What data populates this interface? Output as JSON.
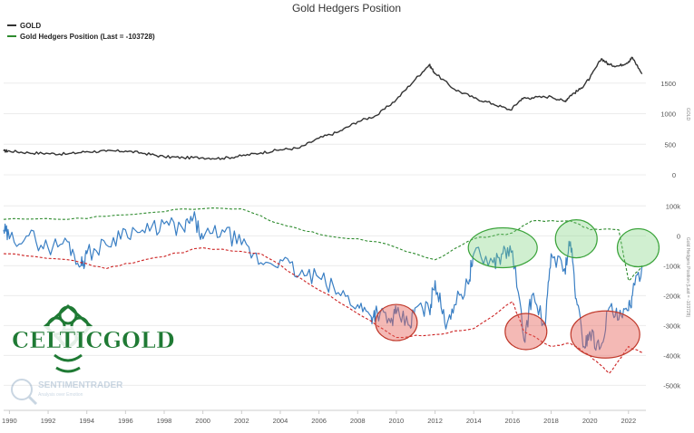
{
  "chart_data": {
    "type": "line",
    "title": "Gold Hedgers Position",
    "legend": {
      "placement": "top-left",
      "items": [
        {
          "label": "GOLD",
          "color": "#333333"
        },
        {
          "label": "Gold Hedgers Position (Last = -103728)",
          "color": "#2e8b2e"
        }
      ]
    },
    "x_ticks": [
      "1990",
      "1992",
      "1994",
      "1996",
      "1998",
      "2000",
      "2002",
      "2004",
      "2006",
      "2008",
      "2010",
      "2012",
      "2014",
      "2016",
      "2018",
      "2020",
      "2022"
    ],
    "xlim": [
      1989.7,
      2022.9
    ],
    "upper_axis": {
      "label": "GOLD",
      "ticks": [
        "0",
        "500",
        "1000",
        "1500"
      ],
      "ylim": [
        0,
        2000
      ],
      "grid": true
    },
    "lower_axis": {
      "label": "Gold Hedgers Position (Last = -103728)",
      "ticks": [
        "100k",
        "0",
        "-100k",
        "-200k",
        "-300k",
        "-400k",
        "-500k"
      ],
      "ylim": [
        -520000,
        110000
      ],
      "grid": true
    },
    "series": [
      {
        "name": "GOLD",
        "axis": "upper",
        "color": "#333333",
        "x": [
          1989.7,
          1990,
          1991,
          1992,
          1993,
          1994,
          1995,
          1996,
          1997,
          1998,
          1999,
          2000,
          2001,
          2002,
          2003,
          2004,
          2005,
          2006,
          2007,
          2008,
          2009,
          2010,
          2011,
          2011.7,
          2012,
          2013,
          2014,
          2015,
          2015.9,
          2016.5,
          2017,
          2018,
          2018.7,
          2019,
          2019.5,
          2020,
          2020.6,
          2021,
          2021.5,
          2022,
          2022.2,
          2022.7
        ],
        "y": [
          390,
          390,
          360,
          350,
          340,
          380,
          385,
          390,
          350,
          295,
          280,
          280,
          270,
          310,
          360,
          410,
          440,
          600,
          700,
          870,
          975,
          1230,
          1570,
          1800,
          1660,
          1400,
          1260,
          1160,
          1060,
          1250,
          1260,
          1280,
          1200,
          1300,
          1400,
          1580,
          1900,
          1800,
          1780,
          1850,
          1920,
          1650
        ]
      },
      {
        "name": "Gold Hedgers Position (Last = -103728)",
        "axis": "lower",
        "color": "#3a7fc4",
        "x": [
          1989.7,
          1990,
          1991,
          1992,
          1993,
          1993.7,
          1994,
          1995,
          1996,
          1997,
          1998,
          1999,
          1999.5,
          2000,
          2001,
          2002,
          2003,
          2004,
          2005,
          2006,
          2007,
          2008,
          2008.7,
          2009,
          2009.7,
          2010,
          2010.7,
          2011,
          2011.7,
          2012,
          2012.5,
          2013,
          2013.7,
          2014,
          2015,
          2015.5,
          2016,
          2016.6,
          2017,
          2017.7,
          2018,
          2018.7,
          2019,
          2019.3,
          2019.7,
          2020,
          2020.5,
          2021,
          2021.5,
          2022,
          2022.2,
          2022.7
        ],
        "y": [
          20000,
          -10000,
          0,
          -40000,
          -20000,
          -100000,
          -60000,
          -30000,
          20000,
          10000,
          40000,
          20000,
          60000,
          -10000,
          20000,
          -30000,
          -90000,
          -80000,
          -130000,
          -140000,
          -190000,
          -230000,
          -270000,
          -250000,
          -290000,
          -260000,
          -300000,
          -240000,
          -250000,
          -150000,
          -290000,
          -230000,
          -160000,
          -60000,
          -90000,
          -60000,
          -50000,
          -350000,
          -200000,
          -300000,
          -60000,
          -110000,
          -20000,
          -210000,
          -370000,
          -320000,
          -380000,
          -240000,
          -280000,
          -250000,
          -200000,
          -100000
        ]
      },
      {
        "name": "Upper band",
        "axis": "lower",
        "color": "#2e8b2e",
        "x": [
          1989.7,
          1993,
          1996,
          1999,
          2002,
          2004,
          2006,
          2009,
          2012,
          2014,
          2016,
          2017,
          2019,
          2020,
          2021.5,
          2022,
          2022.7
        ],
        "y": [
          55000,
          55000,
          70000,
          90000,
          90000,
          40000,
          5000,
          -20000,
          -80000,
          -10000,
          10000,
          50000,
          50000,
          20000,
          20000,
          -150000,
          -100000
        ]
      },
      {
        "name": "Lower band",
        "axis": "lower",
        "color": "#cc2222",
        "x": [
          1989.7,
          1993,
          1995,
          1997,
          2000,
          2003,
          2005,
          2008,
          2010,
          2012,
          2014,
          2016,
          2016.6,
          2018,
          2019,
          2020,
          2021,
          2022,
          2022.7
        ],
        "y": [
          -60000,
          -80000,
          -110000,
          -80000,
          -40000,
          -60000,
          -140000,
          -260000,
          -340000,
          -330000,
          -310000,
          -220000,
          -320000,
          -370000,
          -360000,
          -400000,
          -460000,
          -370000,
          -390000
        ]
      }
    ],
    "annotations": [
      {
        "shape": "ellipse",
        "color": "green",
        "x": 2015.5,
        "y": -40000
      },
      {
        "shape": "ellipse",
        "color": "green",
        "x": 2019.3,
        "y": -10000
      },
      {
        "shape": "ellipse",
        "color": "green",
        "x": 2022.5,
        "y": -40000
      },
      {
        "shape": "ellipse",
        "color": "red",
        "x": 2010,
        "y": -290000
      },
      {
        "shape": "ellipse",
        "color": "red",
        "x": 2016.7,
        "y": -320000
      },
      {
        "shape": "ellipse",
        "color": "red",
        "x": 2020.8,
        "y": -330000
      }
    ]
  },
  "logos": {
    "celticgold": "CELTICGOLD",
    "sentimentrader": "SENTIMENTRADER",
    "sentimentrader_tagline": "Analysis over Emotion"
  }
}
